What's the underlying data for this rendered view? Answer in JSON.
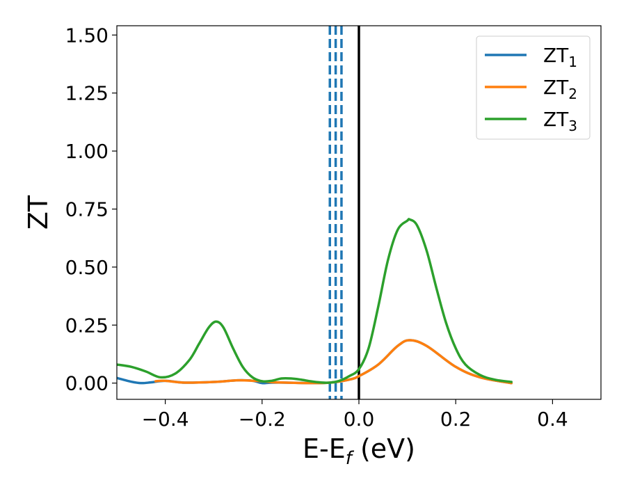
{
  "chart_data": {
    "type": "line",
    "title": "",
    "xlabel": "E-E",
    "xlabel_sub": "f",
    "xlabel_unit": " (eV)",
    "ylabel": "ZT",
    "xlim": [
      -0.5,
      0.5
    ],
    "ylim": [
      -0.07,
      1.54
    ],
    "xticks": [
      -0.4,
      -0.2,
      0.0,
      0.2,
      0.4
    ],
    "xtick_labels": [
      "−0.4",
      "−0.2",
      "0.0",
      "0.2",
      "0.4"
    ],
    "yticks": [
      0.0,
      0.25,
      0.5,
      0.75,
      1.0,
      1.25,
      1.5
    ],
    "ytick_labels": [
      "0.00",
      "0.25",
      "0.50",
      "0.75",
      "1.00",
      "1.25",
      "1.50"
    ],
    "grid": false,
    "legend": "top-right",
    "vertical_lines": [
      {
        "x": 0.0,
        "color": "#000000",
        "style": "solid"
      },
      {
        "x": -0.06,
        "color": "#1f77b4",
        "style": "dashed"
      },
      {
        "x": -0.048,
        "color": "#1f77b4",
        "style": "dashed"
      },
      {
        "x": -0.036,
        "color": "#1f77b4",
        "style": "dashed"
      }
    ],
    "series": [
      {
        "name": "ZT",
        "sub": "1",
        "color": "#1f77b4",
        "x": [
          -0.5,
          -0.47,
          -0.45,
          -0.43,
          -0.4,
          -0.36,
          -0.3,
          -0.25,
          -0.22,
          -0.2,
          -0.18,
          -0.15,
          -0.1,
          -0.06,
          -0.02,
          0.0,
          0.04,
          0.08,
          0.105,
          0.14,
          0.2,
          0.25,
          0.315
        ],
        "y": [
          0.022,
          0.006,
          0.0,
          0.003,
          0.01,
          0.002,
          0.005,
          0.012,
          0.01,
          0.0,
          0.002,
          0.002,
          0.0,
          0.002,
          0.015,
          0.03,
          0.08,
          0.16,
          0.185,
          0.16,
          0.07,
          0.025,
          0.0
        ]
      },
      {
        "name": "ZT",
        "sub": "2",
        "color": "#ff7f0e",
        "x": [
          -0.42,
          -0.4,
          -0.36,
          -0.3,
          -0.25,
          -0.22,
          -0.2,
          -0.18,
          -0.15,
          -0.1,
          -0.06,
          -0.02,
          0.0,
          0.04,
          0.08,
          0.105,
          0.14,
          0.2,
          0.25,
          0.315
        ],
        "y": [
          0.008,
          0.01,
          0.002,
          0.005,
          0.012,
          0.01,
          0.008,
          0.004,
          0.002,
          0.0,
          0.002,
          0.015,
          0.03,
          0.08,
          0.16,
          0.185,
          0.16,
          0.07,
          0.025,
          0.0
        ]
      },
      {
        "name": "ZT",
        "sub": "3",
        "color": "#2ca02c",
        "x": [
          -0.5,
          -0.47,
          -0.44,
          -0.41,
          -0.38,
          -0.35,
          -0.33,
          -0.31,
          -0.295,
          -0.28,
          -0.26,
          -0.24,
          -0.22,
          -0.2,
          -0.18,
          -0.16,
          -0.14,
          -0.12,
          -0.1,
          -0.08,
          -0.06,
          -0.04,
          -0.02,
          0.0,
          0.02,
          0.04,
          0.06,
          0.08,
          0.1,
          0.105,
          0.12,
          0.14,
          0.16,
          0.18,
          0.2,
          0.22,
          0.25,
          0.28,
          0.315
        ],
        "y": [
          0.08,
          0.07,
          0.05,
          0.025,
          0.04,
          0.1,
          0.17,
          0.24,
          0.265,
          0.24,
          0.15,
          0.07,
          0.025,
          0.008,
          0.01,
          0.02,
          0.02,
          0.015,
          0.008,
          0.003,
          0.002,
          0.01,
          0.03,
          0.06,
          0.15,
          0.33,
          0.53,
          0.66,
          0.7,
          0.705,
          0.68,
          0.57,
          0.41,
          0.26,
          0.15,
          0.08,
          0.035,
          0.015,
          0.005
        ]
      }
    ]
  }
}
